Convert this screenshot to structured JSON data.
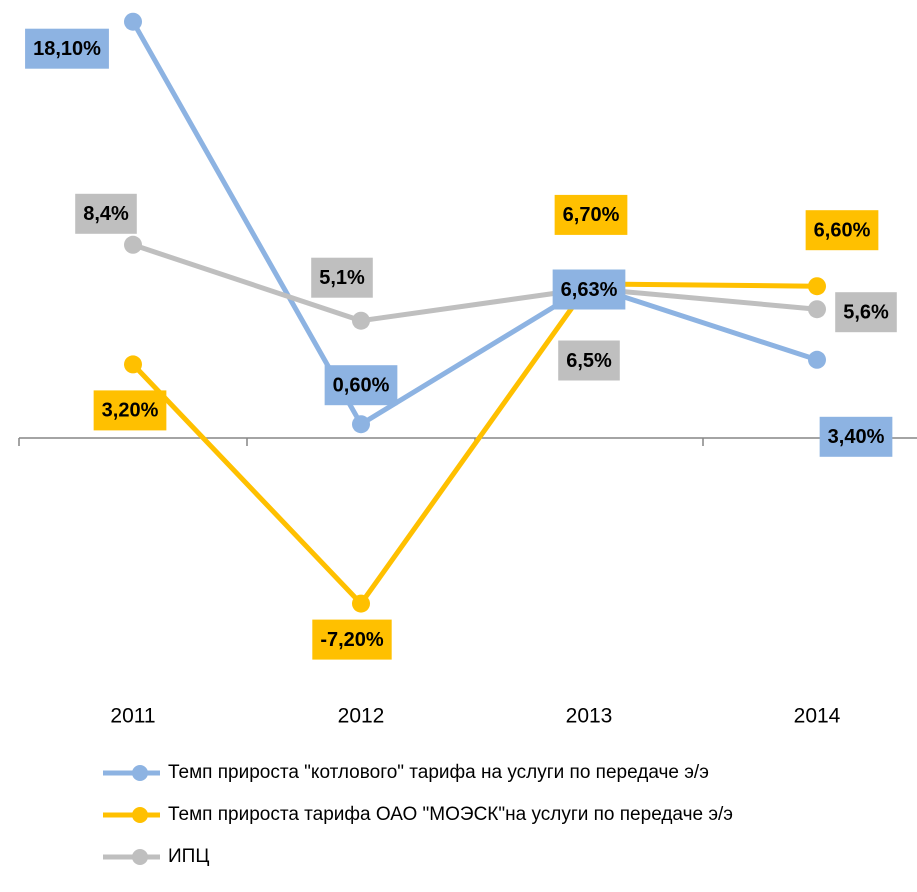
{
  "chart_data": {
    "type": "line",
    "categories": [
      "2011",
      "2012",
      "2013",
      "2014"
    ],
    "series": [
      {
        "name": "Темп прироста \"котлового\" тарифа на услуги по передаче э/э",
        "color": "#8db3e2",
        "values": [
          18.1,
          0.6,
          6.63,
          3.4
        ],
        "value_labels": [
          "18,10%",
          "0,60%",
          "6,63%",
          "3,40%"
        ]
      },
      {
        "name": "Темп прироста тарифа ОАО \"МОЭСК\"на услуги по передаче э/э",
        "color": "#ffc000",
        "values": [
          3.2,
          -7.2,
          6.7,
          6.6
        ],
        "value_labels": [
          "3,20%",
          "-7,20%",
          "6,70%",
          "6,60%"
        ]
      },
      {
        "name": "ИПЦ",
        "color": "#bfbfbf",
        "values": [
          8.4,
          5.1,
          6.5,
          5.6
        ],
        "value_labels": [
          "8,4%",
          "5,1%",
          "6,5%",
          "5,6%"
        ]
      }
    ],
    "ylim": [
      -8,
      19
    ]
  }
}
